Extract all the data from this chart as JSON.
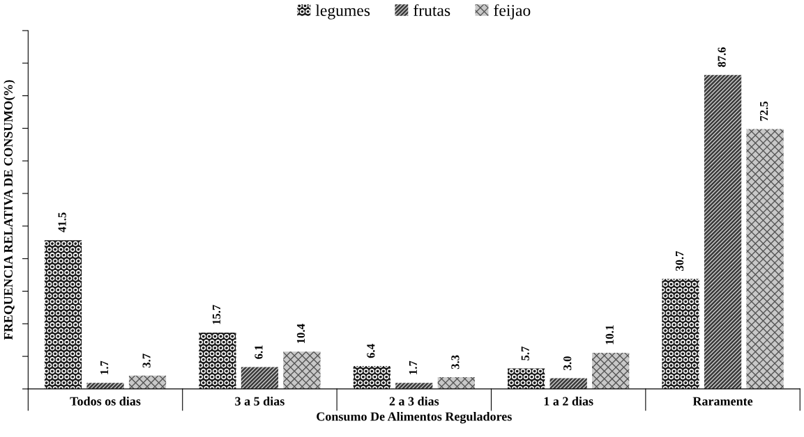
{
  "chart_data": {
    "type": "bar",
    "xlabel": "Consumo De Alimentos Reguladores",
    "ylabel": "FREQUENCIA RELATIVA DE CONSUMO(%)",
    "categories": [
      "Todos os dias",
      "3 a 5 dias",
      "2 a 3 dias",
      "1 a 2 dias",
      "Raramente"
    ],
    "series": [
      {
        "name": "legumes",
        "color": "#1a1a1a",
        "values": [
          41.5,
          15.7,
          6.4,
          5.7,
          30.7
        ],
        "value_labels": [
          "41.5",
          "15.7",
          "6.4",
          "5.7",
          "30.7"
        ]
      },
      {
        "name": "frutas",
        "color": "#3a3a3a",
        "values": [
          1.7,
          6.1,
          1.7,
          3.0,
          87.6
        ],
        "value_labels": [
          "1.7",
          "6.1",
          "1.7",
          "3.0",
          "87.6"
        ]
      },
      {
        "name": "feijao",
        "color": "#c8c8c8",
        "values": [
          3.7,
          10.4,
          3.3,
          10.1,
          72.5
        ],
        "value_labels": [
          "3.7",
          "10.4",
          "3.3",
          "10.1",
          "72.5"
        ]
      }
    ],
    "ylim": [
      0,
      100
    ],
    "yticks": [
      {
        "value": 0,
        "label": null
      },
      {
        "value": 9.09,
        "label": null
      },
      {
        "value": 18.18,
        "label": null
      },
      {
        "value": 27.27,
        "label": null
      },
      {
        "value": 36.36,
        "label": null
      },
      {
        "value": 45.45,
        "label": null
      },
      {
        "value": 54.55,
        "label": null
      },
      {
        "value": 63.64,
        "label": null
      },
      {
        "value": 72.73,
        "label": null
      },
      {
        "value": 81.82,
        "label": null
      },
      {
        "value": 90.91,
        "label": null
      },
      {
        "value": 100,
        "label": null
      }
    ],
    "legend": "top",
    "grid": false
  }
}
